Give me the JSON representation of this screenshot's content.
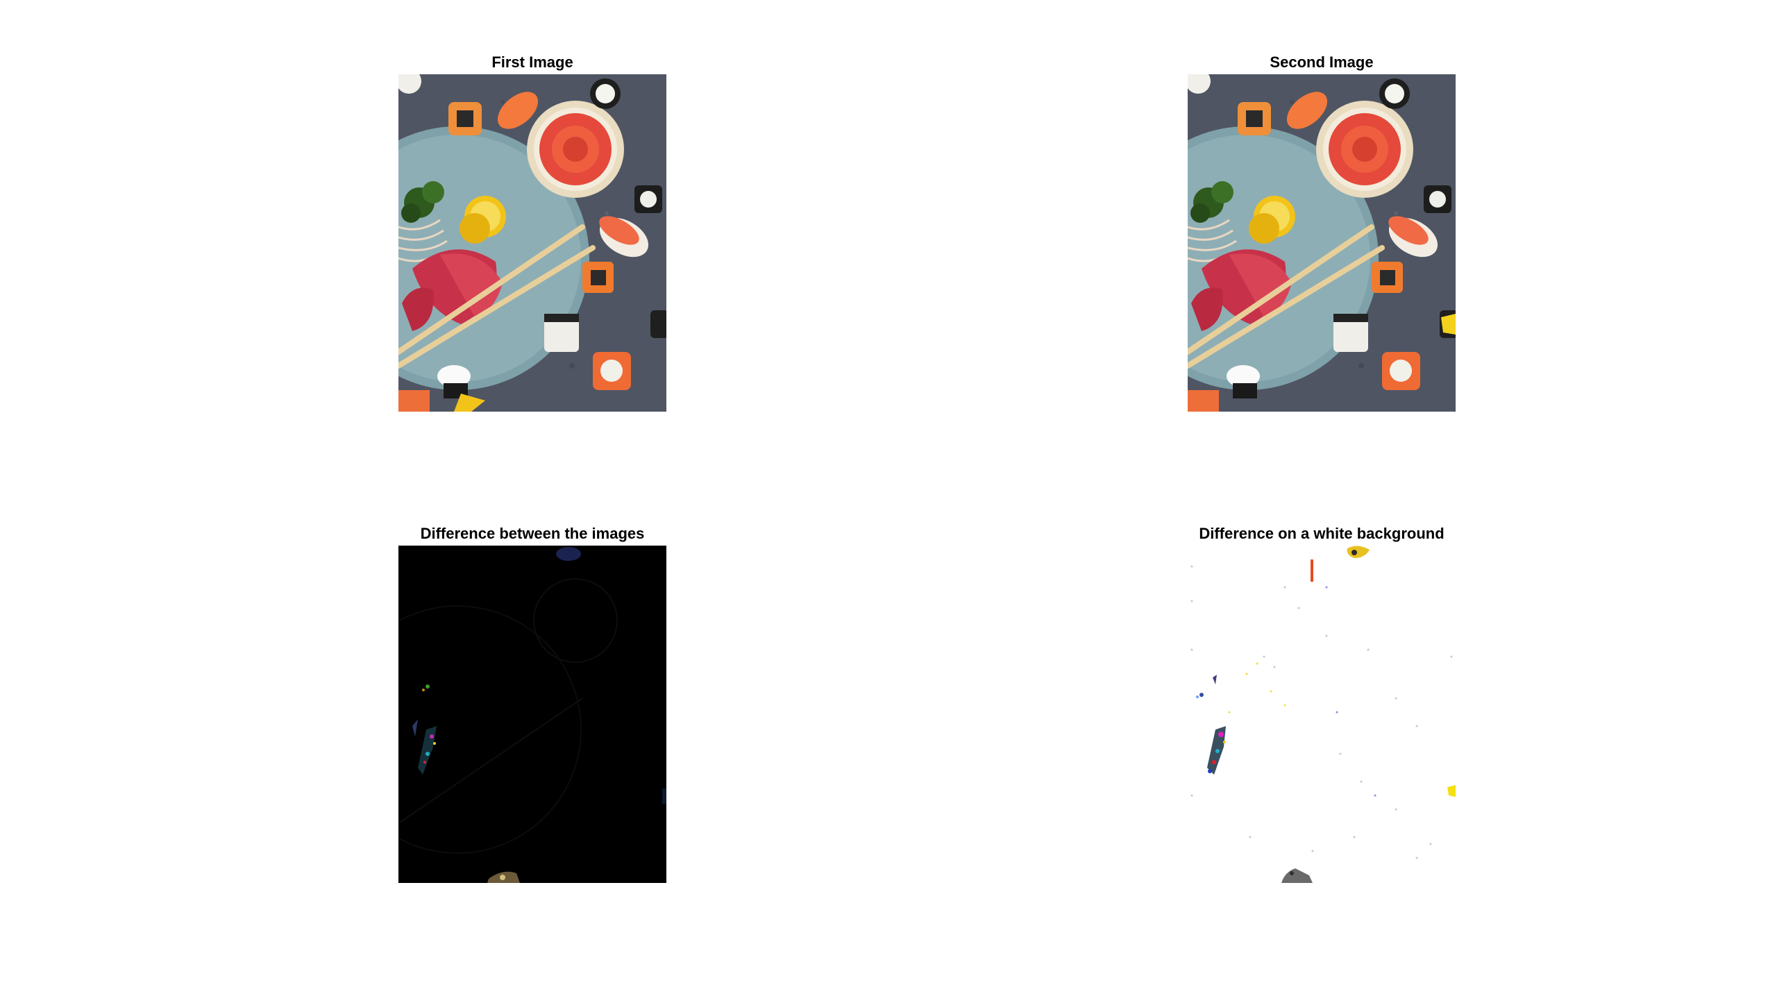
{
  "figure": {
    "titles": {
      "first": "First Image",
      "second": "Second Image",
      "difference": "Difference between the images",
      "difference_white": "Difference on a white background"
    },
    "colors": {
      "background": "#ffffff",
      "slate": "#4f5563",
      "plate": "#7fa1a9",
      "salmon": "#ef5f3f",
      "tuna": "#c8314a",
      "lemon": "#f2c419",
      "herb": "#2f5a1e",
      "diff_bg": "#000000"
    }
  }
}
